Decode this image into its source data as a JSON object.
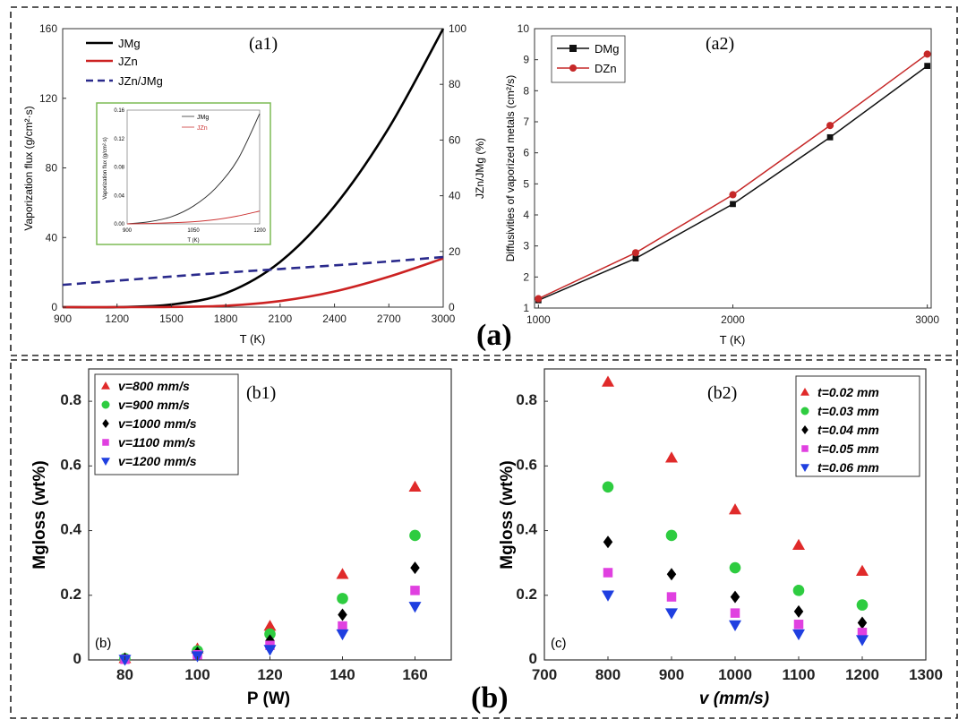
{
  "figure": {
    "group_labels": {
      "a": "(a)",
      "b": "(b)"
    },
    "border_color": "#222222"
  },
  "chart_data": [
    {
      "id": "a1",
      "type": "line",
      "panel_label": "(a1)",
      "xlabel": "T (K)",
      "ylabel": "Vaporization flux (g/cm²·s)",
      "y2label": "JZn/JMg (%)",
      "xlim": [
        900,
        3000
      ],
      "ylim": [
        0,
        160
      ],
      "y2lim": [
        0,
        100
      ],
      "xticks": [
        900,
        1200,
        1500,
        1800,
        2100,
        2400,
        2700,
        3000
      ],
      "yticks": [
        0,
        40,
        80,
        120,
        160
      ],
      "y2ticks": [
        0,
        20,
        40,
        60,
        80,
        100
      ],
      "x": [
        900,
        1200,
        1500,
        1800,
        2100,
        2400,
        2700,
        3000
      ],
      "series": [
        {
          "name": "J_Mg",
          "label": "JMg",
          "axis": "left",
          "color": "#000000",
          "style": "solid",
          "values": [
            0.0,
            0.0,
            1.5,
            8.0,
            26.0,
            58.0,
            103.0,
            160.0
          ]
        },
        {
          "name": "J_Zn",
          "label": "JZn",
          "axis": "left",
          "color": "#cc2222",
          "style": "solid",
          "values": [
            0.0,
            0.0,
            0.1,
            0.8,
            3.5,
            9.0,
            17.5,
            28.0
          ]
        },
        {
          "name": "J_Zn/J_Mg",
          "label": "JZn/JMg",
          "axis": "right",
          "color": "#2a2a8c",
          "style": "dashed",
          "values": [
            8.0,
            9.5,
            11.0,
            12.4,
            13.7,
            15.0,
            16.4,
            18.0
          ]
        }
      ],
      "inset": {
        "xlabel": "T (K)",
        "ylabel": "Vaporization flux (g/cm²·s)",
        "xlim": [
          900,
          1200
        ],
        "ylim": [
          0,
          0.16
        ],
        "xticks": [
          900,
          1050,
          1200
        ],
        "yticks": [
          "0.00",
          "0.04",
          "0.08",
          "0.12",
          "0.16"
        ],
        "x": [
          900,
          950,
          1000,
          1050,
          1100,
          1150,
          1200
        ],
        "series": [
          {
            "name": "J_Mg",
            "label": "JMg",
            "color": "#333333",
            "values": [
              0.0,
              0.003,
              0.01,
              0.025,
              0.05,
              0.09,
              0.155
            ]
          },
          {
            "name": "J_Zn",
            "label": "JZn",
            "color": "#cc3333",
            "values": [
              0.0,
              0.0005,
              0.0015,
              0.003,
              0.006,
              0.011,
              0.018
            ]
          }
        ],
        "frame_color": "#7dbb55"
      }
    },
    {
      "id": "a2",
      "type": "line",
      "panel_label": "(a2)",
      "xlabel": "T (K)",
      "ylabel": "Diffusivities of vaporized metals (cm²/s)",
      "xlim": [
        1000,
        3000
      ],
      "ylim": [
        1,
        10
      ],
      "xticks": [
        1000,
        2000,
        3000
      ],
      "yticks": [
        1,
        2,
        3,
        4,
        5,
        6,
        7,
        8,
        9,
        10
      ],
      "x": [
        1000,
        1500,
        2000,
        2500,
        3000
      ],
      "series": [
        {
          "name": "D_Mg",
          "label": "DMg",
          "color": "#111111",
          "marker": "square",
          "values": [
            1.25,
            2.6,
            4.35,
            6.5,
            8.8
          ]
        },
        {
          "name": "D_Zn",
          "label": "DZn",
          "color": "#c62828",
          "marker": "circle",
          "values": [
            1.3,
            2.78,
            4.65,
            6.88,
            9.18
          ]
        }
      ]
    },
    {
      "id": "b1",
      "type": "scatter",
      "panel_label": "(b1)",
      "corner_label": "(b)",
      "xlabel": "P (W)",
      "ylabel": "Mgloss (wt%)",
      "xlim": [
        70,
        170
      ],
      "ylim": [
        0,
        0.9
      ],
      "xticks": [
        80,
        100,
        120,
        140,
        160
      ],
      "yticks": [
        "0",
        "0.2",
        "0.4",
        "0.6",
        "0.8"
      ],
      "x": [
        80,
        100,
        120,
        140,
        160
      ],
      "series": [
        {
          "name": "v=800 mm/s",
          "marker": "triangle-up",
          "color": "#e02a2a",
          "values": [
            0.005,
            0.035,
            0.105,
            0.265,
            0.535
          ]
        },
        {
          "name": "v=900 mm/s",
          "marker": "circle",
          "color": "#2ecc40",
          "values": [
            0.004,
            0.028,
            0.08,
            0.19,
            0.385
          ]
        },
        {
          "name": "v=1000 mm/s",
          "marker": "diamond",
          "color": "#000000",
          "values": [
            0.003,
            0.022,
            0.06,
            0.14,
            0.285
          ]
        },
        {
          "name": "v=1100 mm/s",
          "marker": "square",
          "color": "#e040e0",
          "values": [
            0.002,
            0.016,
            0.045,
            0.105,
            0.215
          ]
        },
        {
          "name": "v=1200 mm/s",
          "marker": "triangle-down",
          "color": "#1f3fe0",
          "values": [
            0.001,
            0.012,
            0.032,
            0.08,
            0.165
          ]
        }
      ]
    },
    {
      "id": "b2",
      "type": "scatter",
      "panel_label": "(b2)",
      "corner_label": "(c)",
      "xlabel": "v (mm/s)",
      "ylabel": "Mgloss (wt%)",
      "xlim": [
        700,
        1300
      ],
      "ylim": [
        0,
        0.9
      ],
      "xticks": [
        700,
        800,
        900,
        1000,
        1100,
        1200,
        1300
      ],
      "yticks": [
        "0",
        "0.2",
        "0.4",
        "0.6",
        "0.8"
      ],
      "x": [
        800,
        900,
        1000,
        1100,
        1200
      ],
      "series": [
        {
          "name": "t=0.02 mm",
          "marker": "triangle-up",
          "color": "#e02a2a",
          "values": [
            0.86,
            0.625,
            0.465,
            0.355,
            0.275
          ]
        },
        {
          "name": "t=0.03 mm",
          "marker": "circle",
          "color": "#2ecc40",
          "values": [
            0.535,
            0.385,
            0.285,
            0.215,
            0.17
          ]
        },
        {
          "name": "t=0.04 mm",
          "marker": "diamond",
          "color": "#000000",
          "values": [
            0.365,
            0.265,
            0.195,
            0.15,
            0.115
          ]
        },
        {
          "name": "t=0.05 mm",
          "marker": "square",
          "color": "#e040e0",
          "values": [
            0.27,
            0.195,
            0.145,
            0.11,
            0.085
          ]
        },
        {
          "name": "t=0.06 mm",
          "marker": "triangle-down",
          "color": "#1f3fe0",
          "values": [
            0.2,
            0.145,
            0.108,
            0.08,
            0.062
          ]
        }
      ]
    }
  ]
}
